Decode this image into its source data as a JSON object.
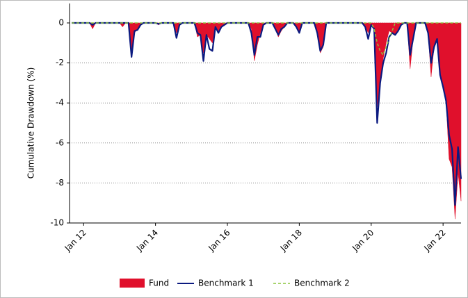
{
  "chart_data": {
    "type": "drawdown",
    "ylabel": "Cumulative Drawdown (%)",
    "x": [
      "2011-09",
      "2012-03",
      "2012-04",
      "2012-05",
      "2013-01",
      "2013-02",
      "2013-03",
      "2013-04",
      "2013-05",
      "2013-06",
      "2013-07",
      "2013-08",
      "2013-09",
      "2014-01",
      "2014-02",
      "2014-03",
      "2014-07",
      "2014-08",
      "2014-09",
      "2014-10",
      "2015-02",
      "2015-03",
      "2015-04",
      "2015-05",
      "2015-06",
      "2015-07",
      "2015-08",
      "2015-09",
      "2015-10",
      "2015-11",
      "2015-12",
      "2016-01",
      "2016-08",
      "2016-09",
      "2016-10",
      "2016-11",
      "2016-12",
      "2017-01",
      "2017-02",
      "2017-04",
      "2017-05",
      "2017-06",
      "2017-07",
      "2017-08",
      "2017-09",
      "2017-11",
      "2017-12",
      "2018-01",
      "2018-02",
      "2018-06",
      "2018-07",
      "2018-08",
      "2018-09",
      "2018-10",
      "2019-10",
      "2019-11",
      "2019-12",
      "2020-01",
      "2020-02",
      "2020-03",
      "2020-04",
      "2020-05",
      "2020-06",
      "2020-07",
      "2020-08",
      "2020-09",
      "2020-10",
      "2020-11",
      "2020-12",
      "2021-01",
      "2021-02",
      "2021-03",
      "2021-04",
      "2021-07",
      "2021-08",
      "2021-09",
      "2021-10",
      "2021-11",
      "2021-12",
      "2022-01",
      "2022-02",
      "2022-03",
      "2022-04",
      "2022-05",
      "2022-06",
      "2022-07"
    ],
    "series": [
      {
        "name": "Fund",
        "kind": "area",
        "color": "#e0102c",
        "values": [
          0,
          0,
          -0.3,
          0,
          0,
          -0.2,
          0,
          0,
          -1.4,
          -0.5,
          -0.3,
          -0.1,
          0,
          0,
          -0.1,
          0,
          0,
          -0.5,
          -0.1,
          0,
          0,
          -0.7,
          -0.6,
          -1.5,
          -0.6,
          -0.8,
          -1.0,
          -0.2,
          -0.4,
          -0.2,
          -0.1,
          0,
          0,
          -0.3,
          -1.9,
          -1.1,
          -0.5,
          -0.1,
          0,
          0,
          -0.3,
          -0.7,
          -0.4,
          -0.2,
          0,
          0,
          -0.2,
          -0.5,
          0,
          0,
          -0.5,
          -1.5,
          -1.2,
          0,
          0,
          -0.2,
          -0.5,
          -0.1,
          -0.3,
          -4.2,
          -3.2,
          -1.8,
          -1.0,
          -0.4,
          -0.5,
          -0.6,
          -0.4,
          -0.1,
          0,
          0,
          -2.3,
          -0.8,
          0,
          0,
          -0.5,
          -2.7,
          -1.2,
          -0.8,
          -2.6,
          -3.2,
          -3.9,
          -6.8,
          -7.2,
          -9.8,
          -7.5,
          -8.9
        ]
      },
      {
        "name": "Benchmark 1",
        "kind": "line",
        "color": "#0b1a80",
        "values": [
          0,
          0,
          -0.1,
          0,
          0,
          0,
          0,
          0,
          -1.7,
          -0.4,
          -0.35,
          -0.1,
          0,
          0,
          -0.05,
          0,
          0,
          -0.75,
          -0.1,
          0,
          0,
          -0.5,
          -0.6,
          -1.9,
          -0.6,
          -1.3,
          -1.4,
          -0.2,
          -0.5,
          -0.2,
          -0.1,
          0,
          0,
          -0.5,
          -1.6,
          -0.7,
          -0.7,
          -0.1,
          0,
          0,
          -0.3,
          -0.6,
          -0.3,
          -0.2,
          0,
          0,
          -0.2,
          -0.5,
          0,
          0,
          -0.5,
          -1.4,
          -1.1,
          0,
          0,
          -0.2,
          -0.8,
          -0.1,
          -0.3,
          -5.0,
          -3.0,
          -2.0,
          -1.5,
          -0.7,
          -0.5,
          -0.6,
          -0.4,
          -0.1,
          0,
          0,
          -1.6,
          -0.8,
          0,
          0,
          -0.5,
          -2.0,
          -1.2,
          -0.8,
          -2.6,
          -3.2,
          -3.9,
          -5.6,
          -6.3,
          -9.1,
          -6.2,
          -7.8
        ]
      },
      {
        "name": "Benchmark 2",
        "kind": "dashed",
        "color": "#8cc63f",
        "values": [
          0,
          0,
          0,
          0,
          0,
          0,
          0,
          0,
          0,
          0,
          0,
          0,
          0,
          0,
          0,
          0,
          0,
          0,
          0,
          0,
          0,
          0,
          0,
          0,
          0,
          0,
          0,
          0,
          0,
          0,
          0,
          0,
          0,
          0,
          0,
          0,
          0,
          0,
          0,
          0,
          0,
          0,
          0,
          0,
          0,
          0,
          0,
          0,
          0,
          0,
          0,
          0,
          0,
          0,
          0,
          0,
          0,
          0,
          -0.3,
          -1.0,
          -1.4,
          -1.6,
          -1.2,
          -0.8,
          -0.4,
          0,
          0,
          0,
          0,
          0,
          0,
          0,
          0,
          0,
          0,
          0,
          0,
          0,
          0,
          0,
          0,
          0,
          0,
          0,
          0,
          0
        ]
      }
    ],
    "xlim": [
      "2011-09",
      "2022-07"
    ],
    "xticks": [
      {
        "value": "2012-01",
        "label": "Jan 12"
      },
      {
        "value": "2014-01",
        "label": "Jan 14"
      },
      {
        "value": "2016-01",
        "label": "Jan 16"
      },
      {
        "value": "2018-01",
        "label": "Jan 18"
      },
      {
        "value": "2020-01",
        "label": "Jan 20"
      },
      {
        "value": "2022-01",
        "label": "Jan 22"
      }
    ],
    "ylim": [
      -10,
      0
    ],
    "yticks": [
      0,
      -2,
      -4,
      -6,
      -8,
      -10
    ],
    "grid": true,
    "legend": "bottom"
  }
}
